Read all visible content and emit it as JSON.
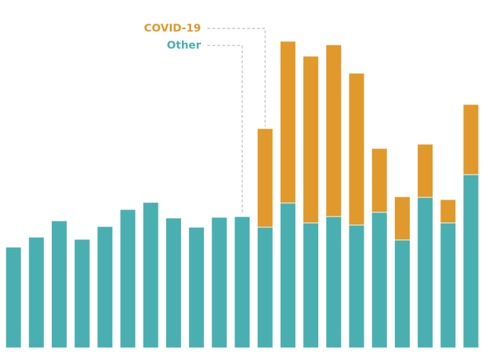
{
  "chart_data": {
    "type": "stacked_bar",
    "series": [
      {
        "name": "Other",
        "color": "#4aafb0",
        "values": [
          142,
          156,
          179,
          153,
          171,
          195,
          205,
          183,
          170,
          184,
          185,
          170,
          204,
          176,
          185,
          173,
          191,
          152,
          212,
          176,
          244
        ]
      },
      {
        "name": "COVID-19",
        "color": "#e0992a",
        "values": [
          null,
          null,
          null,
          null,
          null,
          null,
          null,
          null,
          null,
          null,
          null,
          139,
          228,
          235,
          242,
          214,
          90,
          61,
          75,
          33,
          99
        ]
      }
    ],
    "ylim": [
      0,
      440
    ]
  }
}
